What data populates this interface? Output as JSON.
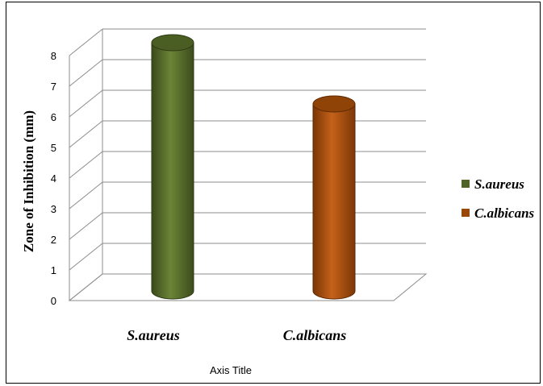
{
  "chart_data": {
    "type": "bar",
    "style": "3d-cylinder",
    "categories": [
      "S.aureus",
      "C.albicans"
    ],
    "series": [
      {
        "name": "S.aureus",
        "values": [
          8,
          null
        ],
        "color": "#4f6228"
      },
      {
        "name": "C.albicans",
        "values": [
          null,
          6
        ],
        "color": "#984807"
      }
    ],
    "ylabel": "Zone of Inhibition (mm)",
    "xlabel": "Axis Title",
    "ylim": [
      0,
      8
    ],
    "yticks": [
      "0",
      "1",
      "2",
      "3",
      "4",
      "5",
      "6",
      "7",
      "8"
    ],
    "grid": true,
    "legend_position": "right"
  }
}
